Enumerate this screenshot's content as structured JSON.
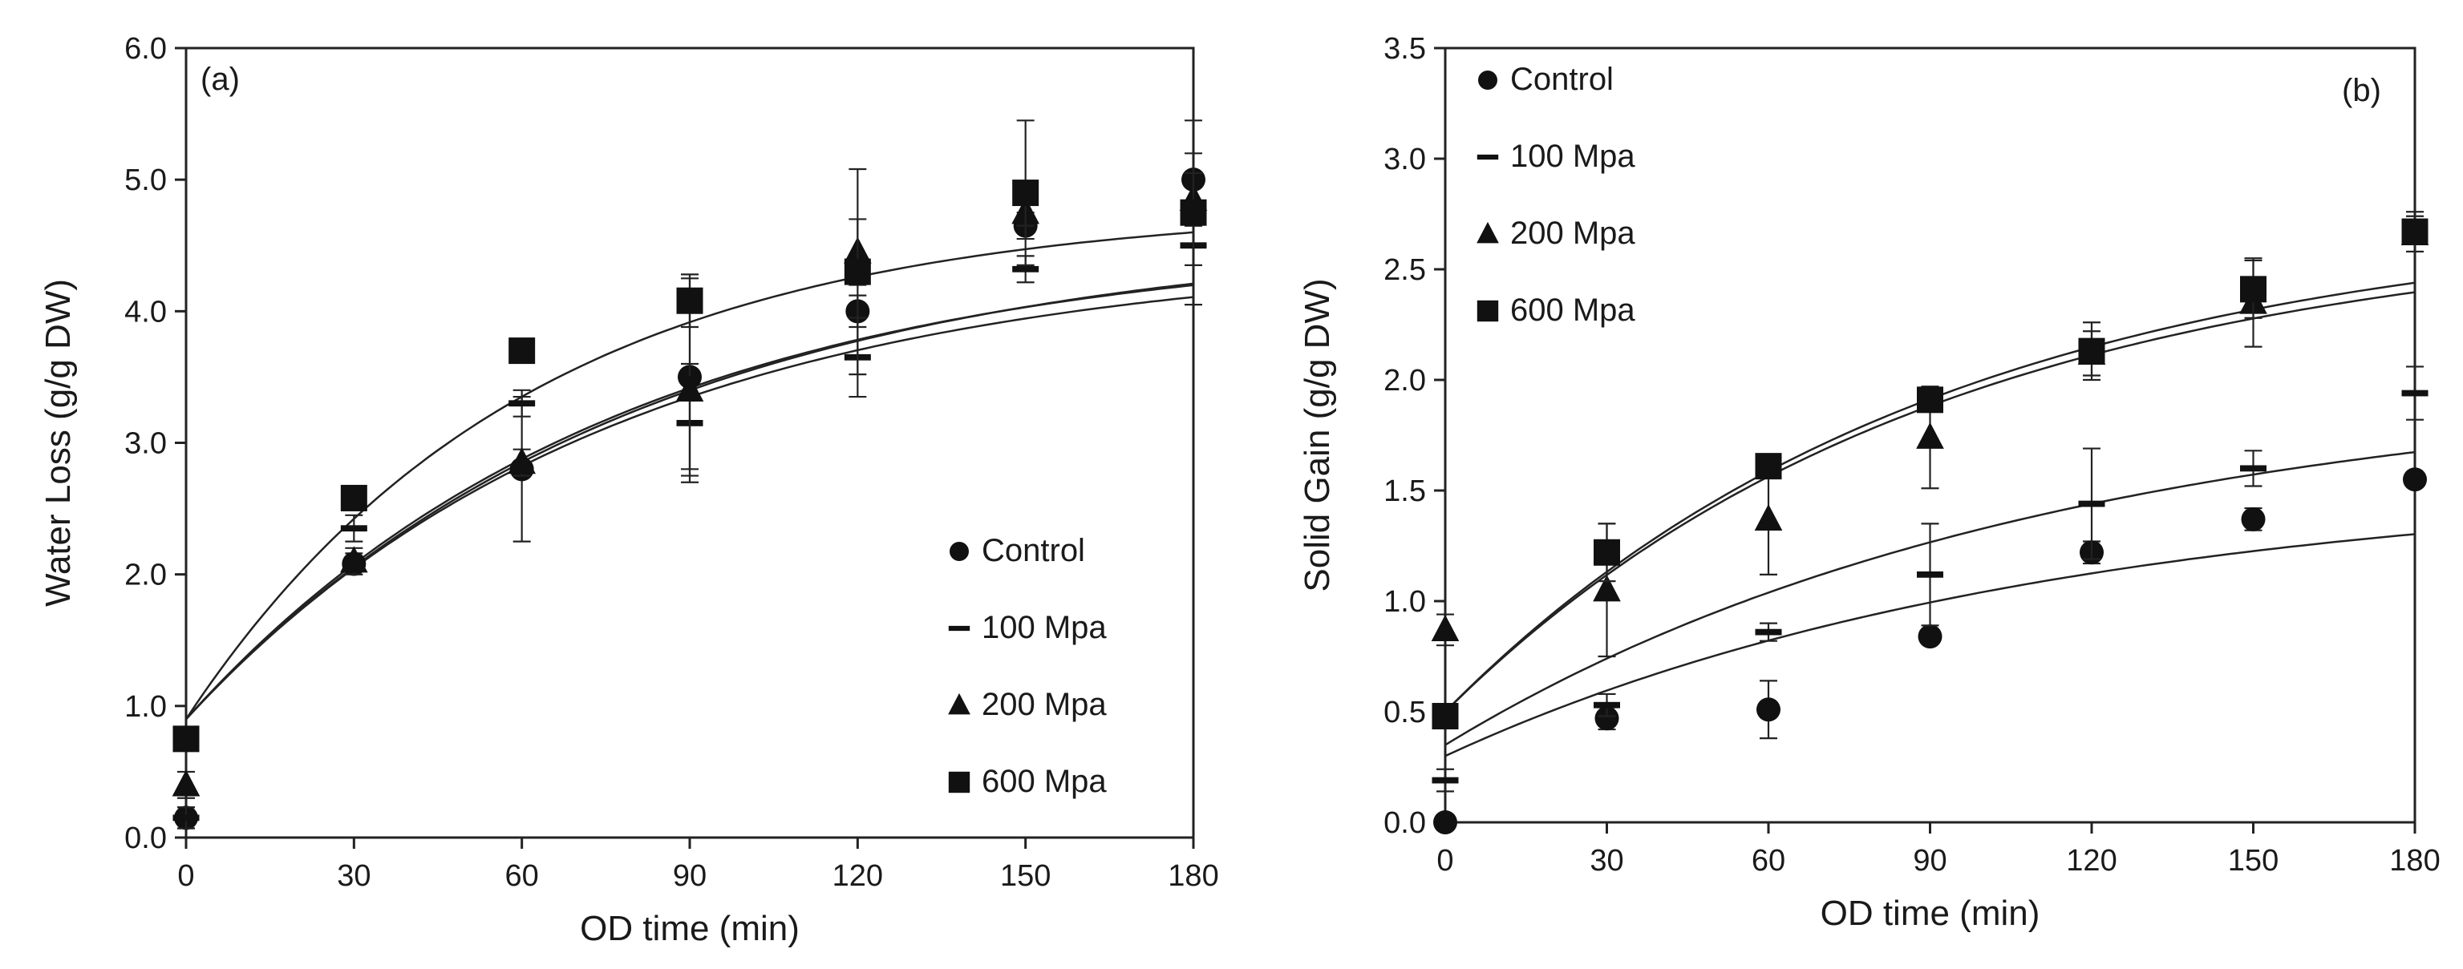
{
  "chart_data": [
    {
      "type": "scatter",
      "panel_label": "(a)",
      "xlabel": "OD time (min)",
      "ylabel": "Water Loss (g/g DW)",
      "xlim": [
        0,
        180
      ],
      "ylim": [
        0,
        6
      ],
      "xticks": [
        "0",
        "30",
        "60",
        "90",
        "120",
        "150",
        "180"
      ],
      "yticks": [
        "0.0",
        "1.0",
        "2.0",
        "3.0",
        "4.0",
        "5.0",
        "6.0"
      ],
      "grid": false,
      "legend_position": "bottom-right",
      "x": [
        0,
        30,
        60,
        90,
        120,
        150,
        180
      ],
      "series": [
        {
          "name": "Control",
          "marker": "circle",
          "values": [
            0.15,
            2.08,
            2.8,
            3.5,
            4.0,
            4.65,
            5.0
          ],
          "errors": [
            0.08,
            0.08,
            0.55,
            0.75,
            0.12,
            0.1,
            0.2
          ],
          "fit": [
            0.9,
            4.45,
            0.013
          ]
        },
        {
          "name": "100 Mpa",
          "marker": "dash",
          "values": [
            0.15,
            2.35,
            3.3,
            3.15,
            3.65,
            4.32,
            4.5
          ],
          "errors": [
            0.08,
            0.1,
            0.1,
            0.45,
            0.3,
            0.1,
            0.15
          ],
          "fit": [
            0.9,
            4.55,
            0.013
          ]
        },
        {
          "name": "200 Mpa",
          "marker": "triangle",
          "values": [
            0.4,
            2.1,
            2.85,
            3.4,
            4.45,
            4.75,
            4.85
          ],
          "errors": [
            0.1,
            0.1,
            0.1,
            0.6,
            0.25,
            0.1,
            0.2
          ],
          "fit": [
            0.9,
            4.6,
            0.0125
          ]
        },
        {
          "name": "600 Mpa",
          "marker": "square",
          "values": [
            0.75,
            2.58,
            3.7,
            4.08,
            4.3,
            4.9,
            4.75
          ],
          "errors": [
            0.05,
            0.05,
            0.05,
            0.2,
            0.78,
            0.55,
            0.7
          ],
          "fit": [
            0.9,
            4.8,
            0.0165
          ]
        }
      ]
    },
    {
      "type": "scatter",
      "panel_label": "(b)",
      "xlabel": "OD time (min)",
      "ylabel": "Solid Gain (g/g DW)",
      "xlim": [
        0,
        180
      ],
      "ylim": [
        0,
        3.5
      ],
      "xticks": [
        "0",
        "30",
        "60",
        "90",
        "120",
        "150",
        "180"
      ],
      "yticks": [
        "0.0",
        "0.5",
        "1.0",
        "1.5",
        "2.0",
        "2.5",
        "3.0",
        "3.5"
      ],
      "grid": false,
      "legend_position": "top-left",
      "x": [
        0,
        30,
        60,
        90,
        120,
        150,
        180
      ],
      "series": [
        {
          "name": "Control",
          "marker": "circle",
          "values": [
            0.0,
            0.47,
            0.51,
            0.84,
            1.22,
            1.37,
            1.55
          ],
          "errors": [
            0.0,
            0.05,
            0.13,
            0.03,
            0.05,
            0.05,
            0.03
          ],
          "fit": [
            0.3,
            1.55,
            0.009
          ]
        },
        {
          "name": "100 Mpa",
          "marker": "dash",
          "values": [
            0.19,
            0.53,
            0.86,
            1.12,
            1.44,
            1.6,
            1.94
          ],
          "errors": [
            0.05,
            0.05,
            0.04,
            0.23,
            0.25,
            0.08,
            0.12
          ],
          "fit": [
            0.35,
            2.0,
            0.009
          ]
        },
        {
          "name": "200 Mpa",
          "marker": "triangle",
          "values": [
            0.87,
            1.05,
            1.37,
            1.74,
            2.12,
            2.35,
            2.66
          ],
          "errors": [
            0.07,
            0.3,
            0.25,
            0.23,
            0.1,
            0.2,
            0.08
          ],
          "fit": [
            0.5,
            2.7,
            0.011
          ]
        },
        {
          "name": "600 Mpa",
          "marker": "square",
          "values": [
            0.48,
            1.22,
            1.61,
            1.91,
            2.13,
            2.41,
            2.67
          ],
          "errors": [
            0.03,
            0.13,
            0.05,
            0.05,
            0.13,
            0.13,
            0.09
          ],
          "fit": [
            0.5,
            2.75,
            0.011
          ]
        }
      ]
    }
  ]
}
